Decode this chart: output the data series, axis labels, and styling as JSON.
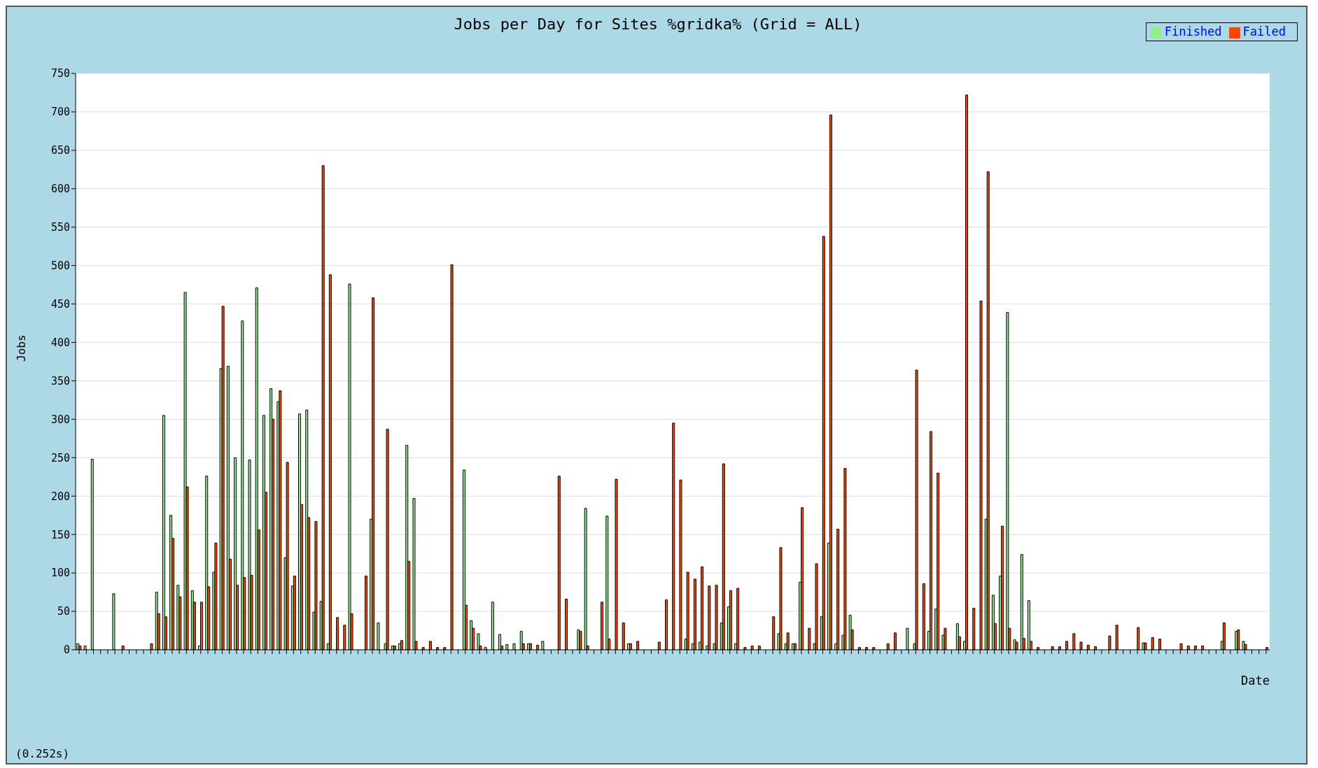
{
  "chart_data": {
    "type": "bar",
    "title": "Jobs per Day for Sites %gridka% (Grid = ALL)",
    "xlabel": "Date",
    "ylabel": "Jobs",
    "annotations": [
      "(0.252s)"
    ],
    "categories": [
      null,
      null,
      null,
      null,
      null,
      null,
      null,
      null,
      null,
      null,
      null,
      null,
      null,
      null,
      null,
      null,
      null,
      null,
      null,
      null,
      null,
      null,
      null,
      null,
      null,
      null,
      null,
      null,
      null,
      null,
      null,
      null,
      null,
      null,
      null,
      null,
      null,
      null,
      null,
      null,
      null,
      null,
      null,
      null,
      null,
      null,
      null,
      null,
      null,
      null,
      null,
      null,
      null,
      null,
      null,
      null,
      null,
      null,
      null,
      null,
      null,
      null,
      null,
      null,
      null,
      null,
      null,
      null,
      null,
      null,
      null,
      null,
      null,
      null,
      null,
      null,
      null,
      null,
      null,
      null,
      null,
      null,
      null,
      null,
      null,
      null,
      null,
      null,
      null,
      null,
      null,
      null,
      null,
      null,
      null,
      null,
      null,
      null,
      null,
      null,
      null,
      null,
      null,
      null,
      null,
      null,
      null,
      null,
      null,
      null,
      null,
      null,
      null,
      null,
      null,
      null,
      null,
      null,
      null,
      null,
      null,
      null,
      null,
      null,
      null,
      null,
      null,
      null,
      null,
      null,
      null,
      null,
      null,
      null,
      null,
      null,
      null,
      null,
      null,
      null,
      null,
      null,
      null,
      null,
      null,
      null,
      null,
      null,
      null,
      null,
      null,
      null,
      null,
      null,
      null,
      null,
      null,
      null,
      null,
      null,
      null,
      null,
      null,
      null,
      null,
      null,
      null
    ],
    "series": [
      {
        "name": "Finished",
        "color": "#90ee90",
        "values": [
          8,
          5,
          248,
          0,
          0,
          73,
          0,
          0,
          0,
          0,
          0,
          75,
          305,
          175,
          84,
          465,
          77,
          5,
          226,
          101,
          366,
          369,
          250,
          428,
          247,
          471,
          305,
          340,
          323,
          120,
          83,
          307,
          312,
          49,
          63,
          8,
          0,
          0,
          476,
          0,
          0,
          170,
          35,
          8,
          5,
          8,
          266,
          197,
          0,
          0,
          0,
          0,
          0,
          0,
          234,
          38,
          21,
          3,
          62,
          20,
          7,
          8,
          24,
          8,
          0,
          11,
          0,
          0,
          0,
          0,
          26,
          184,
          0,
          0,
          174,
          0,
          0,
          8,
          0,
          0,
          0,
          0,
          0,
          0,
          0,
          14,
          8,
          10,
          5,
          8,
          35,
          56,
          8,
          0,
          0,
          0,
          0,
          0,
          21,
          8,
          8,
          88,
          0,
          8,
          43,
          139,
          8,
          19,
          45,
          0,
          0,
          0,
          0,
          0,
          0,
          0,
          28,
          8,
          0,
          24,
          53,
          19,
          0,
          34,
          11,
          0,
          0,
          170,
          71,
          96,
          439,
          13,
          124,
          64,
          0,
          0,
          0,
          0,
          0,
          0,
          0,
          0,
          0,
          0,
          0,
          0,
          0,
          0,
          0,
          9,
          0,
          0,
          0,
          0,
          0,
          0,
          0,
          0,
          0,
          0,
          11,
          0,
          24,
          11,
          0,
          0,
          0
        ]
      },
      {
        "name": "Failed",
        "color": "#ff4500",
        "values": [
          5,
          0,
          0,
          0,
          0,
          0,
          5,
          0,
          0,
          0,
          8,
          47,
          43,
          145,
          69,
          212,
          62,
          62,
          82,
          139,
          447,
          118,
          84,
          94,
          97,
          156,
          205,
          300,
          337,
          244,
          96,
          189,
          172,
          167,
          630,
          488,
          42,
          32,
          47,
          0,
          96,
          458,
          0,
          287,
          5,
          12,
          115,
          11,
          3,
          11,
          3,
          3,
          501,
          0,
          58,
          28,
          5,
          0,
          0,
          5,
          0,
          0,
          8,
          8,
          6,
          0,
          0,
          226,
          66,
          0,
          24,
          5,
          0,
          62,
          14,
          222,
          35,
          8,
          11,
          0,
          0,
          10,
          65,
          295,
          221,
          101,
          92,
          108,
          83,
          84,
          242,
          77,
          80,
          3,
          5,
          5,
          0,
          43,
          133,
          22,
          8,
          185,
          28,
          112,
          538,
          696,
          157,
          236,
          26,
          3,
          3,
          3,
          0,
          8,
          22,
          0,
          0,
          364,
          86,
          284,
          230,
          28,
          0,
          17,
          722,
          54,
          454,
          622,
          34,
          161,
          28,
          10,
          15,
          11,
          3,
          0,
          4,
          4,
          11,
          21,
          10,
          6,
          4,
          0,
          18,
          32,
          0,
          0,
          29,
          9,
          16,
          14,
          0,
          0,
          8,
          5,
          5,
          5,
          0,
          0,
          35,
          0,
          26,
          7,
          0,
          0,
          3
        ]
      }
    ],
    "ylim": [
      0,
      750
    ],
    "yticks": [
      0,
      50,
      100,
      150,
      200,
      250,
      300,
      350,
      400,
      450,
      500,
      550,
      600,
      650,
      700,
      750
    ],
    "grid": "y",
    "legend": "top right"
  }
}
